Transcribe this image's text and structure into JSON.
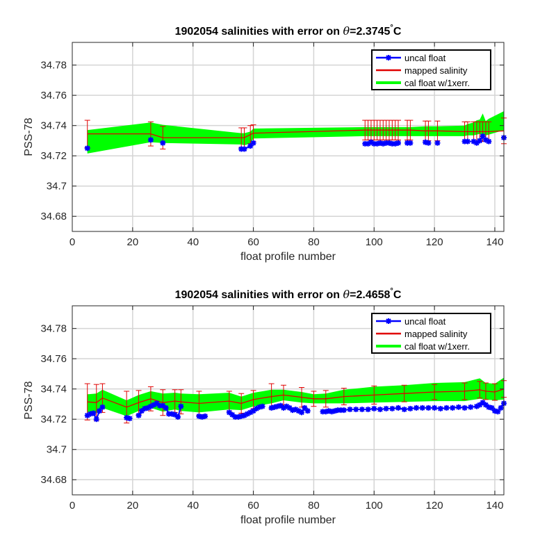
{
  "chart_data": [
    {
      "type": "line",
      "title_prefix": "1902054 salinities with error on ",
      "title_theta": "θ",
      "title_value": "=2.3745",
      "title_degree": "°",
      "title_unit": "C",
      "xlabel": "float profile number",
      "ylabel": "PSS-78",
      "xlim": [
        0,
        143
      ],
      "ylim": [
        34.67,
        34.795
      ],
      "xticks": [
        0,
        20,
        40,
        60,
        80,
        100,
        120,
        140
      ],
      "yticks": [
        34.68,
        34.7,
        34.72,
        34.74,
        34.76,
        34.78
      ],
      "ytick_labels": [
        "34.68",
        "34.7",
        "34.72",
        "34.74",
        "34.76",
        "34.78"
      ],
      "grid": true,
      "legend_position": "top-right",
      "legend": [
        "uncal float",
        "mapped salinity",
        "cal float w/1xerr."
      ],
      "colors": {
        "uncal": "#0000ff",
        "mapped": "#e00000",
        "cal": "#00ff00"
      },
      "cal_band": {
        "x": [
          5,
          26,
          30,
          56,
          57,
          59,
          60,
          97,
          98,
          99,
          100,
          101,
          102,
          103,
          104,
          105,
          106,
          107,
          108,
          111,
          112,
          117,
          118,
          121,
          130,
          131,
          133,
          134,
          135,
          136,
          137,
          138,
          143
        ],
        "lower": [
          34.7215,
          34.729,
          34.7285,
          34.7275,
          34.727,
          34.728,
          34.7315,
          34.733,
          34.733,
          34.733,
          34.733,
          34.733,
          34.733,
          34.733,
          34.733,
          34.733,
          34.733,
          34.733,
          34.733,
          34.733,
          34.733,
          34.733,
          34.733,
          34.733,
          34.733,
          34.7335,
          34.7335,
          34.734,
          34.7345,
          34.734,
          34.7335,
          34.734,
          34.737
        ],
        "upper": [
          34.737,
          34.742,
          34.7405,
          34.735,
          34.735,
          34.736,
          34.738,
          34.739,
          34.739,
          34.739,
          34.739,
          34.739,
          34.739,
          34.739,
          34.739,
          34.739,
          34.739,
          34.739,
          34.739,
          34.739,
          34.739,
          34.7395,
          34.7395,
          34.7395,
          34.74,
          34.741,
          34.742,
          34.7435,
          34.744,
          34.748,
          34.743,
          34.7445,
          34.7495
        ]
      },
      "mapped": {
        "x": [
          5,
          26,
          30,
          56,
          57,
          59,
          60,
          97,
          98,
          99,
          100,
          101,
          102,
          103,
          104,
          105,
          106,
          107,
          108,
          111,
          112,
          117,
          118,
          121,
          130,
          131,
          133,
          134,
          135,
          136,
          137,
          138,
          143
        ],
        "y": [
          34.7345,
          34.7345,
          34.732,
          34.732,
          34.732,
          34.734,
          34.735,
          34.737,
          34.737,
          34.737,
          34.737,
          34.737,
          34.737,
          34.737,
          34.737,
          34.737,
          34.737,
          34.737,
          34.737,
          34.737,
          34.737,
          34.7365,
          34.7365,
          34.7365,
          34.736,
          34.736,
          34.736,
          34.736,
          34.736,
          34.736,
          34.736,
          34.736,
          34.7365
        ],
        "err": [
          0.009,
          0.008,
          0.0075,
          0.0065,
          0.0065,
          0.006,
          0.0055,
          0.0065,
          0.0065,
          0.0065,
          0.0065,
          0.0065,
          0.0065,
          0.0065,
          0.0065,
          0.0065,
          0.0065,
          0.0065,
          0.0065,
          0.0065,
          0.0065,
          0.0065,
          0.0065,
          0.0065,
          0.0065,
          0.0065,
          0.0065,
          0.0065,
          0.0065,
          0.0065,
          0.0065,
          0.0065,
          0.0085
        ]
      },
      "uncal": {
        "x": [
          5,
          26,
          30,
          56,
          57,
          59,
          60,
          97,
          98,
          99,
          100,
          101,
          102,
          103,
          104,
          105,
          106,
          107,
          108,
          111,
          112,
          117,
          118,
          121,
          130,
          131,
          133,
          134,
          135,
          136,
          137,
          138,
          143
        ],
        "y": [
          34.725,
          34.7305,
          34.7285,
          34.7245,
          34.7245,
          34.7265,
          34.7285,
          34.728,
          34.728,
          34.729,
          34.728,
          34.728,
          34.7285,
          34.728,
          34.7285,
          34.7285,
          34.728,
          34.728,
          34.7285,
          34.7285,
          34.7285,
          34.729,
          34.7285,
          34.7285,
          34.7295,
          34.7295,
          34.7295,
          34.7285,
          34.73,
          34.733,
          34.7305,
          34.7295,
          34.732
        ]
      }
    },
    {
      "type": "line",
      "title_prefix": "1902054 salinities with error on ",
      "title_theta": "θ",
      "title_value": "=2.4658",
      "title_degree": "°",
      "title_unit": "C",
      "xlabel": "float profile number",
      "ylabel": "PSS-78",
      "xlim": [
        0,
        143
      ],
      "ylim": [
        34.67,
        34.795
      ],
      "xticks": [
        0,
        20,
        40,
        60,
        80,
        100,
        120,
        140
      ],
      "yticks": [
        34.68,
        34.7,
        34.72,
        34.74,
        34.76,
        34.78
      ],
      "ytick_labels": [
        "34.68",
        "34.7",
        "34.72",
        "34.74",
        "34.76",
        "34.78"
      ],
      "grid": true,
      "legend_position": "top-right",
      "legend": [
        "uncal float",
        "mapped salinity",
        "cal float w/1xerr."
      ],
      "colors": {
        "uncal": "#0000ff",
        "mapped": "#e00000",
        "cal": "#00ff00"
      },
      "cal_band": {
        "x": [
          5,
          8,
          10,
          18,
          22,
          26,
          30,
          34,
          36,
          42,
          52,
          56,
          60,
          66,
          70,
          76,
          80,
          84,
          90,
          100,
          110,
          120,
          130,
          135,
          137,
          140,
          143
        ],
        "lower": [
          34.7245,
          34.724,
          34.7275,
          34.722,
          34.7255,
          34.7275,
          34.725,
          34.7265,
          34.7255,
          34.7245,
          34.7265,
          34.726,
          34.7285,
          34.7305,
          34.7325,
          34.731,
          34.7305,
          34.7305,
          34.7305,
          34.731,
          34.7315,
          34.732,
          34.732,
          34.7335,
          34.733,
          34.7325,
          34.733
        ],
        "upper": [
          34.7365,
          34.737,
          34.7395,
          34.7325,
          34.736,
          34.7385,
          34.737,
          34.7375,
          34.737,
          34.7365,
          34.7375,
          34.735,
          34.7375,
          34.7395,
          34.7395,
          34.738,
          34.7365,
          34.737,
          34.7395,
          34.7415,
          34.7425,
          34.744,
          34.7445,
          34.747,
          34.744,
          34.7435,
          34.7475
        ]
      },
      "mapped": {
        "x": [
          5,
          8,
          10,
          18,
          22,
          26,
          30,
          34,
          36,
          42,
          52,
          56,
          60,
          66,
          70,
          76,
          80,
          84,
          90,
          100,
          110,
          120,
          130,
          135,
          137,
          140,
          143
        ],
        "y": [
          34.7315,
          34.731,
          34.734,
          34.728,
          34.731,
          34.7335,
          34.731,
          34.732,
          34.7315,
          34.7305,
          34.732,
          34.7305,
          34.733,
          34.735,
          34.736,
          34.7345,
          34.7335,
          34.7335,
          34.735,
          34.736,
          34.737,
          34.738,
          34.7385,
          34.7395,
          34.7385,
          34.738,
          34.74
        ],
        "err": [
          0.012,
          0.012,
          0.0095,
          0.0105,
          0.008,
          0.008,
          0.0085,
          0.0075,
          0.008,
          0.008,
          0.0065,
          0.0065,
          0.006,
          0.0085,
          0.0065,
          0.0065,
          0.005,
          0.0055,
          0.0055,
          0.006,
          0.0055,
          0.005,
          0.0055,
          0.0055,
          0.0055,
          0.0055,
          0.0055
        ]
      },
      "uncal": {
        "x": [
          5,
          6,
          7,
          8,
          9,
          10,
          18,
          19,
          22,
          23,
          24,
          25,
          26,
          27,
          28,
          29,
          30,
          31,
          32,
          33,
          34,
          35,
          36,
          42,
          43,
          44,
          52,
          53,
          54,
          55,
          56,
          57,
          58,
          59,
          60,
          61,
          62,
          63,
          66,
          67,
          68,
          69,
          70,
          71,
          72,
          73,
          74,
          75,
          76,
          77,
          78,
          83,
          84,
          85,
          86,
          87,
          88,
          89,
          90,
          92,
          94,
          96,
          98,
          100,
          102,
          104,
          106,
          108,
          110,
          112,
          114,
          116,
          118,
          120,
          122,
          124,
          126,
          128,
          130,
          132,
          134,
          135,
          136,
          137,
          138,
          139,
          140,
          141,
          142,
          143
        ],
        "y": [
          34.7225,
          34.7235,
          34.724,
          34.72,
          34.7255,
          34.728,
          34.721,
          34.7205,
          34.7225,
          34.7255,
          34.727,
          34.7275,
          34.7285,
          34.7295,
          34.7305,
          34.729,
          34.729,
          34.7275,
          34.7235,
          34.7235,
          34.723,
          34.7215,
          34.7285,
          34.722,
          34.7215,
          34.722,
          34.7245,
          34.723,
          34.7215,
          34.7215,
          34.722,
          34.7225,
          34.7235,
          34.7245,
          34.7255,
          34.727,
          34.728,
          34.7285,
          34.7275,
          34.728,
          34.7285,
          34.729,
          34.7275,
          34.7285,
          34.7275,
          34.726,
          34.7265,
          34.7255,
          34.7245,
          34.7275,
          34.7255,
          34.725,
          34.725,
          34.7255,
          34.725,
          34.7255,
          34.726,
          34.726,
          34.726,
          34.7265,
          34.7265,
          34.7265,
          34.7265,
          34.727,
          34.7265,
          34.727,
          34.727,
          34.7275,
          34.7265,
          34.727,
          34.7275,
          34.7275,
          34.7275,
          34.7275,
          34.727,
          34.7275,
          34.7275,
          34.728,
          34.7275,
          34.728,
          34.7285,
          34.7295,
          34.731,
          34.7295,
          34.728,
          34.7275,
          34.7255,
          34.725,
          34.7275,
          34.7305
        ]
      }
    }
  ]
}
